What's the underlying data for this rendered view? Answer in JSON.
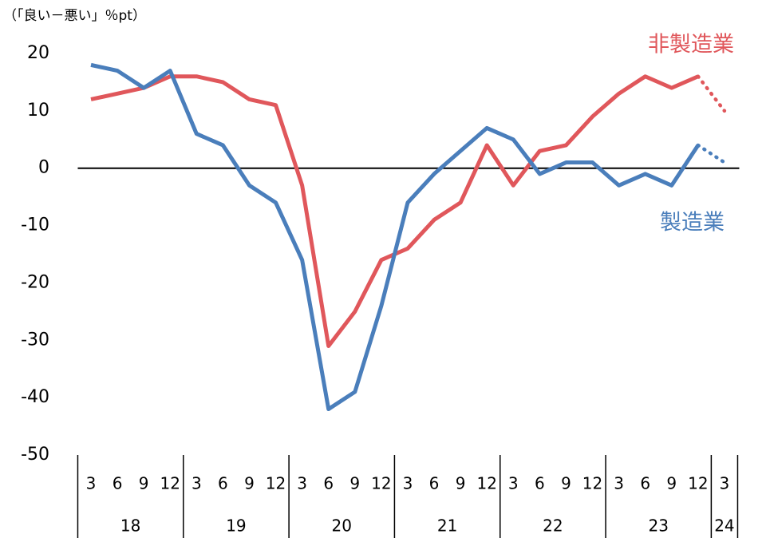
{
  "chart_data": {
    "type": "line",
    "unit_label": "（「良い－悪い」％pt）",
    "categories": [
      "3",
      "6",
      "9",
      "12",
      "3",
      "6",
      "9",
      "12",
      "3",
      "6",
      "9",
      "12",
      "3",
      "6",
      "9",
      "12",
      "3",
      "6",
      "9",
      "12",
      "3",
      "6",
      "9",
      "12",
      "3"
    ],
    "x_groups": [
      {
        "label": "18",
        "count": 4
      },
      {
        "label": "19",
        "count": 4
      },
      {
        "label": "20",
        "count": 4
      },
      {
        "label": "21",
        "count": 4
      },
      {
        "label": "22",
        "count": 4
      },
      {
        "label": "23",
        "count": 4
      },
      {
        "label": "24",
        "count": 1
      }
    ],
    "series": [
      {
        "name": "非製造業",
        "color": "#e0575b",
        "dotted_last_segments": 1,
        "values": [
          12,
          13,
          14,
          16,
          16,
          15,
          12,
          11,
          -3,
          -31,
          -25,
          -16,
          -14,
          -9,
          -6,
          4,
          -3,
          3,
          4,
          9,
          13,
          16,
          14,
          16,
          10
        ]
      },
      {
        "name": "製造業",
        "color": "#4a7ebb",
        "dotted_last_segments": 1,
        "values": [
          18,
          17,
          14,
          17,
          6,
          4,
          -3,
          -6,
          -16,
          -42,
          -39,
          -24,
          -6,
          -1,
          3,
          7,
          5,
          -1,
          1,
          1,
          -3,
          -1,
          -3,
          4,
          1
        ]
      }
    ],
    "ylim": [
      -50,
      20
    ],
    "yticks": [
      -50,
      -40,
      -30,
      -20,
      -10,
      0,
      10,
      20
    ],
    "zero_line": true,
    "grid": false
  }
}
